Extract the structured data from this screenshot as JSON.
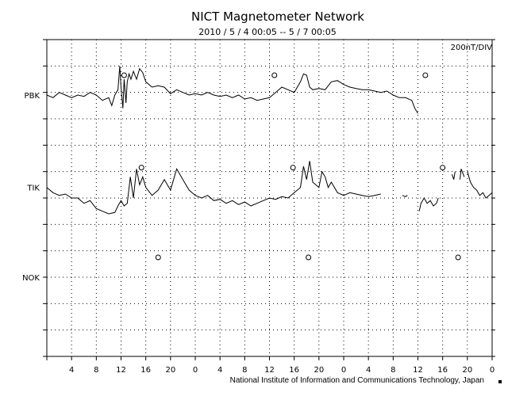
{
  "chart_data": {
    "type": "line",
    "title": "NICT Magnetometer Network",
    "subtitle": "2010 / 5 / 4   00:05 -- 5 / 7   00:05",
    "scale_label": "200nT/DIV",
    "credit": "National Institute of Information and Communications Technology, Japan",
    "x_tick_labels": [
      "4",
      "8",
      "12",
      "16",
      "20",
      "0",
      "4",
      "8",
      "12",
      "16",
      "20",
      "0",
      "4",
      "8",
      "12",
      "16",
      "20",
      "0"
    ],
    "x_unit": "hours",
    "x_range": [
      0,
      72
    ],
    "y_range_divisions": [
      0,
      12
    ],
    "grid": true,
    "stations": [
      "PBK",
      "TIK",
      "NOK"
    ],
    "series": [
      {
        "name": "PBK",
        "baseline_div": 2.1,
        "noon_markers_hours": [
          12.5,
          36.8,
          61.2
        ],
        "segments": [
          [
            [
              0,
              2.1
            ],
            [
              1,
              2.2
            ],
            [
              2,
              2.0
            ],
            [
              3,
              2.1
            ],
            [
              4,
              2.2
            ],
            [
              5,
              2.1
            ],
            [
              6,
              2.15
            ],
            [
              7,
              2.0
            ],
            [
              8,
              2.1
            ],
            [
              9,
              2.3
            ],
            [
              10,
              2.2
            ],
            [
              10.5,
              2.5
            ],
            [
              11,
              2.1
            ],
            [
              11.5,
              1.9
            ],
            [
              11.8,
              1.0
            ],
            [
              12,
              1.8
            ],
            [
              12.3,
              2.6
            ],
            [
              12.5,
              1.5
            ],
            [
              12.8,
              2.4
            ],
            [
              13,
              1.6
            ],
            [
              13.3,
              1.3
            ],
            [
              13.6,
              1.5
            ],
            [
              14,
              1.2
            ],
            [
              14.5,
              1.5
            ],
            [
              15,
              1.1
            ],
            [
              15.5,
              1.25
            ],
            [
              16,
              1.6
            ],
            [
              17,
              1.8
            ],
            [
              18,
              1.75
            ],
            [
              19,
              1.8
            ],
            [
              20,
              2.05
            ],
            [
              21,
              1.9
            ],
            [
              22,
              2.0
            ],
            [
              23,
              2.1
            ],
            [
              24,
              2.05
            ],
            [
              25,
              2.1
            ],
            [
              26,
              2.0
            ],
            [
              27,
              2.1
            ],
            [
              28,
              2.15
            ],
            [
              29,
              2.1
            ],
            [
              30,
              2.2
            ],
            [
              31,
              2.1
            ],
            [
              32,
              2.25
            ],
            [
              33,
              2.2
            ],
            [
              34,
              2.3
            ],
            [
              35,
              2.25
            ],
            [
              36,
              2.2
            ],
            [
              37,
              2.0
            ],
            [
              38,
              1.8
            ],
            [
              39,
              1.9
            ],
            [
              40,
              2.0
            ],
            [
              41,
              1.6
            ],
            [
              41.5,
              1.3
            ],
            [
              42,
              1.35
            ],
            [
              42.5,
              1.8
            ],
            [
              43,
              1.9
            ],
            [
              44,
              1.85
            ],
            [
              45,
              1.9
            ],
            [
              46,
              1.6
            ],
            [
              47,
              1.55
            ],
            [
              48,
              1.7
            ],
            [
              49,
              1.8
            ],
            [
              50,
              1.85
            ],
            [
              51,
              1.9
            ],
            [
              52,
              1.9
            ],
            [
              53,
              1.95
            ],
            [
              54,
              2.0
            ],
            [
              55,
              1.95
            ],
            [
              56,
              2.1
            ],
            [
              57,
              2.2
            ],
            [
              58,
              2.2
            ],
            [
              59,
              2.3
            ],
            [
              59.5,
              2.6
            ],
            [
              60,
              2.8
            ]
          ]
        ]
      },
      {
        "name": "TIK",
        "baseline_div": 5.6,
        "noon_markers_hours": [
          15.3,
          39.8,
          64.0
        ],
        "segments": [
          [
            [
              0,
              5.6
            ],
            [
              1,
              5.8
            ],
            [
              2,
              5.9
            ],
            [
              3,
              5.85
            ],
            [
              4,
              6.0
            ],
            [
              5,
              6.0
            ],
            [
              6,
              6.2
            ],
            [
              7,
              6.1
            ],
            [
              8,
              6.4
            ],
            [
              9,
              6.5
            ],
            [
              10,
              6.6
            ],
            [
              11,
              6.55
            ],
            [
              11.5,
              6.3
            ],
            [
              12,
              6.1
            ],
            [
              12.5,
              6.3
            ],
            [
              13,
              6.2
            ],
            [
              13.5,
              5.2
            ],
            [
              14,
              6.0
            ],
            [
              14.5,
              4.9
            ],
            [
              15,
              5.5
            ],
            [
              15.5,
              5.2
            ],
            [
              16,
              5.6
            ],
            [
              17,
              5.9
            ],
            [
              18,
              5.7
            ],
            [
              19,
              5.3
            ],
            [
              20,
              5.7
            ],
            [
              21,
              4.9
            ],
            [
              22,
              5.3
            ],
            [
              23,
              5.7
            ],
            [
              24,
              5.9
            ],
            [
              25,
              6.0
            ],
            [
              26,
              5.9
            ],
            [
              27,
              6.1
            ],
            [
              28,
              6.05
            ],
            [
              29,
              6.2
            ],
            [
              30,
              6.1
            ],
            [
              31,
              6.25
            ],
            [
              32,
              6.15
            ],
            [
              33,
              6.3
            ],
            [
              34,
              6.2
            ],
            [
              35,
              6.1
            ],
            [
              36,
              6.0
            ],
            [
              37,
              6.05
            ],
            [
              38,
              5.95
            ],
            [
              39,
              6.0
            ],
            [
              40,
              5.8
            ],
            [
              41,
              5.6
            ],
            [
              41.5,
              4.8
            ],
            [
              42,
              5.3
            ],
            [
              42.5,
              4.6
            ],
            [
              43,
              5.4
            ],
            [
              44,
              5.6
            ],
            [
              44.5,
              5.0
            ],
            [
              45,
              5.2
            ],
            [
              45.5,
              5.6
            ],
            [
              46,
              5.4
            ],
            [
              47,
              5.8
            ],
            [
              48,
              5.9
            ],
            [
              49,
              5.8
            ],
            [
              50,
              5.85
            ],
            [
              51,
              5.9
            ],
            [
              52,
              5.95
            ],
            [
              53,
              5.9
            ],
            [
              54,
              5.85
            ]
          ],
          [
            [
              57.5,
              5.9
            ],
            [
              58,
              5.95
            ],
            [
              58.3,
              5.9
            ]
          ],
          [
            [
              60.2,
              6.5
            ],
            [
              60.5,
              6.2
            ],
            [
              61,
              6.0
            ],
            [
              61.5,
              6.2
            ],
            [
              62,
              6.1
            ],
            [
              62.5,
              6.3
            ],
            [
              63,
              6.2
            ],
            [
              63.3,
              6.0
            ]
          ],
          [
            [
              65.5,
              5.1
            ],
            [
              65.8,
              5.3
            ],
            [
              66,
              5.0
            ]
          ],
          [
            [
              66.8,
              5.3
            ],
            [
              67,
              4.9
            ],
            [
              67.5,
              5.2
            ]
          ],
          [
            [
              68,
              5.0
            ],
            [
              68.5,
              5.4
            ],
            [
              69,
              5.6
            ],
            [
              69.5,
              5.7
            ],
            [
              70,
              5.9
            ],
            [
              70.5,
              5.8
            ],
            [
              71,
              6.0
            ],
            [
              71.5,
              5.9
            ],
            [
              72,
              5.8
            ]
          ]
        ]
      },
      {
        "name": "NOK",
        "baseline_div": 9.0,
        "noon_markers_hours": [
          18.0,
          42.3,
          66.5
        ],
        "segments": []
      }
    ]
  }
}
